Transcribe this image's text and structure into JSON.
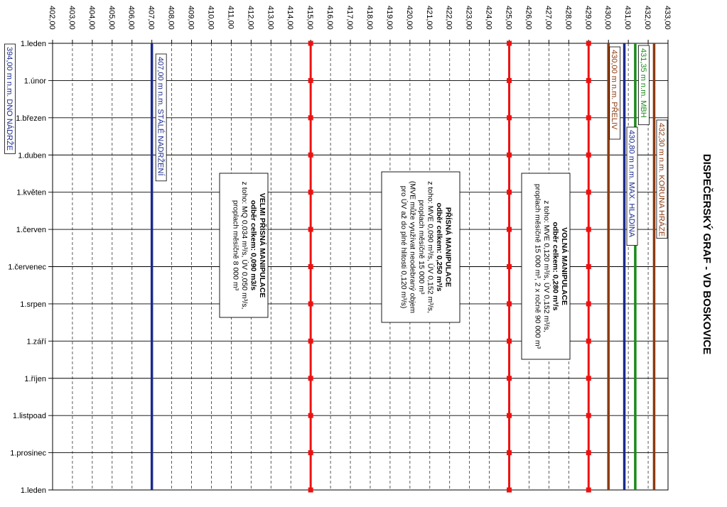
{
  "chart_data": {
    "type": "line",
    "title": "DISPEČERSKÝ GRAF - VD BOSKOVICE",
    "value_axis": {
      "min": 402.0,
      "max": 433.0,
      "ticks": [
        "402,00",
        "403,00",
        "404,00",
        "405,00",
        "406,00",
        "407,00",
        "408,00",
        "409,00",
        "410,00",
        "411,00",
        "412,00",
        "413,00",
        "414,00",
        "415,00",
        "416,00",
        "417,00",
        "418,00",
        "419,00",
        "420,00",
        "421,00",
        "422,00",
        "423,00",
        "424,00",
        "425,00",
        "426,00",
        "427,00",
        "428,00",
        "429,00",
        "430,00",
        "431,00",
        "432,00",
        "433,00"
      ],
      "gridlines": "dashed"
    },
    "category_axis": {
      "categories": [
        "1.leden",
        "1.únor",
        "1.březen",
        "1.duben",
        "1.květen",
        "1.červen",
        "1.červenec",
        "1.srpen",
        "1.září",
        "1.říjen",
        "1.listpoad",
        "1.prosinec",
        "1.leden"
      ],
      "gridlines": "solid"
    },
    "series": [
      {
        "value": 407.0,
        "color": "#1a2a8c",
        "label": "407,00 m n.m. STÁLÉ NADRŽENÍ",
        "markers": false
      },
      {
        "value": 415.0,
        "color": "#ee1111",
        "markers": true
      },
      {
        "value": 425.0,
        "color": "#ee1111",
        "markers": true
      },
      {
        "value": 429.0,
        "color": "#ee1111",
        "markers": true
      },
      {
        "value": 430.0,
        "color": "#8b3a10",
        "label": "430,00 m n.m. PŘELIV",
        "markers": false
      },
      {
        "value": 430.8,
        "color": "#1a2a8c",
        "label": "430,80 m n.m. MAX. HLADINA",
        "markers": false
      },
      {
        "value": 431.35,
        "color": "#1a8a1a",
        "label": "431,35 m n.m. MBH",
        "markers": false
      },
      {
        "value": 432.3,
        "color": "#8b3a10",
        "label": "432,30 m n.m. KORUNA HRÁZE",
        "markers": false
      }
    ],
    "outside_label": {
      "text": "394,00 m n.m. DNO NÁDRŽE",
      "color": "#1a2a8c"
    },
    "annotations": [
      {
        "name": "velmi-prisna-manipulace",
        "lines": [
          "VELMI PŘÍSNÁ MANIPULACE",
          "odběr celkem: 0,090 m3/s",
          "z toho: MQ 0,034 m³/s, ÚV 0,050 m³/s,",
          "proplach měsíčně 8 000 m³"
        ]
      },
      {
        "name": "prisna-manipulace",
        "lines": [
          "PŘÍSNÁ MANIPULACE",
          "odběr celkem: 0,250 m³/s",
          "z toho: MVE 0,090 m³/s, ÚV 0,152 m³/s,",
          "proplach měsíčně 15 000 m³",
          "(MVE může využívat neodebraný objem",
          "pro ÚV až do plné hlitosti 0,120 m³/s)"
        ]
      },
      {
        "name": "volna-manipulace",
        "lines": [
          "VOLNÁ MANIPULACE",
          "odběr celkem: 0,280 m³/s",
          "z toho: MVE 0,120 m³/s, ÚV 0,152 m³/s,",
          "proplach měsíčně 15 000 m³, 2 x ročně 90 000 m³"
        ]
      }
    ]
  }
}
